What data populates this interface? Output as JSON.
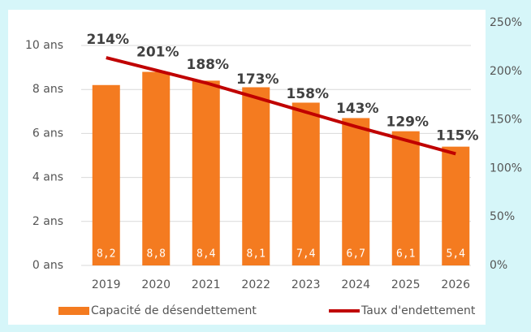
{
  "chart_data": {
    "type": "bar",
    "categories": [
      "2019",
      "2020",
      "2021",
      "2022",
      "2023",
      "2024",
      "2025",
      "2026"
    ],
    "series": [
      {
        "name": "Capacité de désendettement",
        "color": "#f47b20",
        "type": "bar",
        "values": [
          8.2,
          8.8,
          8.4,
          8.1,
          7.4,
          6.7,
          6.1,
          5.4
        ],
        "value_labels": [
          "8,2",
          "8,8",
          "8,4",
          "8,1",
          "7,4",
          "6,7",
          "6,1",
          "5,4"
        ]
      },
      {
        "name": "Taux d'endettement",
        "color": "#c00000",
        "type": "line",
        "axis": "y2",
        "values": [
          214,
          201,
          188,
          173,
          158,
          143,
          129,
          115
        ],
        "value_labels": [
          "214%",
          "201%",
          "188%",
          "173%",
          "158%",
          "143%",
          "129%",
          "115%"
        ]
      }
    ],
    "ylim": [
      0,
      10
    ],
    "yticks": [
      {
        "value": 0,
        "label": "0 ans"
      },
      {
        "value": 2,
        "label": "2 ans"
      },
      {
        "value": 4,
        "label": "4 ans"
      },
      {
        "value": 6,
        "label": "6 ans"
      },
      {
        "value": 8,
        "label": "8 ans"
      },
      {
        "value": 10,
        "label": "10 ans"
      }
    ],
    "y2lim": [
      0,
      250
    ],
    "y2ticks": [
      {
        "value": 0,
        "label": "0%"
      },
      {
        "value": 50,
        "label": "50%"
      },
      {
        "value": 100,
        "label": "100%"
      },
      {
        "value": 150,
        "label": "150%"
      },
      {
        "value": 200,
        "label": "200%"
      },
      {
        "value": 250,
        "label": "250%"
      }
    ],
    "grid": true,
    "legend": "bottom"
  }
}
